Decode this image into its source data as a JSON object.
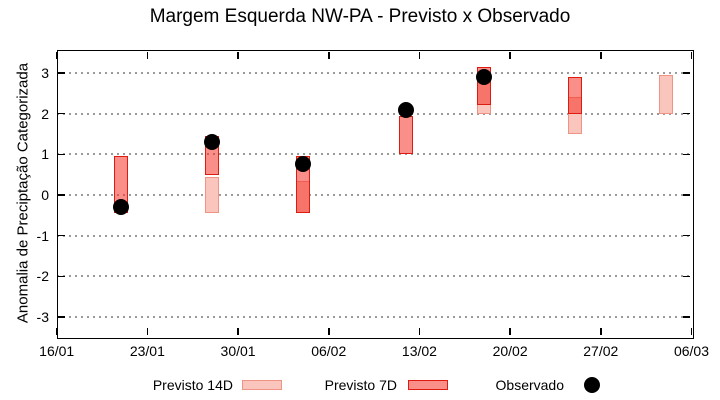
{
  "chart_data": {
    "type": "bar",
    "subtype": "floating-range-bars-with-observed-points",
    "title": "Margem Esquerda NW-PA - Previsto x Observado",
    "ylabel": "Anomalia de Preciptação Categorizada",
    "xlabel": "",
    "grid": "horizontal-dotted",
    "legend_position": "bottom",
    "ylim": [
      -3.5,
      3.55
    ],
    "y_ticks": [
      3,
      2,
      1,
      0,
      -1,
      -2,
      -3
    ],
    "x_axis": {
      "tick_labels": [
        "16/01",
        "23/01",
        "30/01",
        "06/02",
        "13/02",
        "20/02",
        "27/02",
        "06/03"
      ],
      "tick_interval_days": 7
    },
    "legend": [
      {
        "label": "Previsto 14D",
        "marker": "light-pink-box"
      },
      {
        "label": "Previsto 7D",
        "marker": "red-box"
      },
      {
        "label": "Observado",
        "marker": "black-dot"
      }
    ],
    "colors": {
      "previsto_14d_fill": "#f9c5bd",
      "previsto_14d_border": "#ef9384",
      "previsto_7d_fill": "rgba(246,50,40,0.55)",
      "previsto_7d_border": "#dd1b10",
      "observado": "#000000",
      "grid": "#9a9a9a"
    },
    "points": [
      {
        "date": "21/01",
        "days_from_start": 5,
        "previsto_14d": null,
        "previsto_7d": [
          -0.45,
          0.95
        ],
        "observado": -0.3
      },
      {
        "date": "28/01",
        "days_from_start": 12,
        "previsto_14d": [
          -0.45,
          0.45
        ],
        "previsto_7d": [
          0.5,
          1.45
        ],
        "observado": 1.3
      },
      {
        "date": "04/02",
        "days_from_start": 19,
        "previsto_14d": [
          -0.45,
          0.35
        ],
        "previsto_7d": [
          -0.45,
          0.95
        ],
        "observado": 0.75
      },
      {
        "date": "12/02",
        "days_from_start": 27,
        "previsto_14d": null,
        "previsto_7d": [
          1.0,
          1.95
        ],
        "observado": 2.1
      },
      {
        "date": "18/02",
        "days_from_start": 33,
        "previsto_14d": [
          2.0,
          2.9
        ],
        "previsto_7d": [
          2.2,
          3.15
        ],
        "observado": 2.9
      },
      {
        "date": "25/02",
        "days_from_start": 40,
        "previsto_14d": [
          1.5,
          2.4
        ],
        "previsto_7d": [
          2.0,
          2.9
        ],
        "observado": null
      },
      {
        "date": "04/03",
        "days_from_start": 47,
        "previsto_14d": [
          2.0,
          2.95
        ],
        "previsto_7d": null,
        "observado": null
      }
    ]
  }
}
